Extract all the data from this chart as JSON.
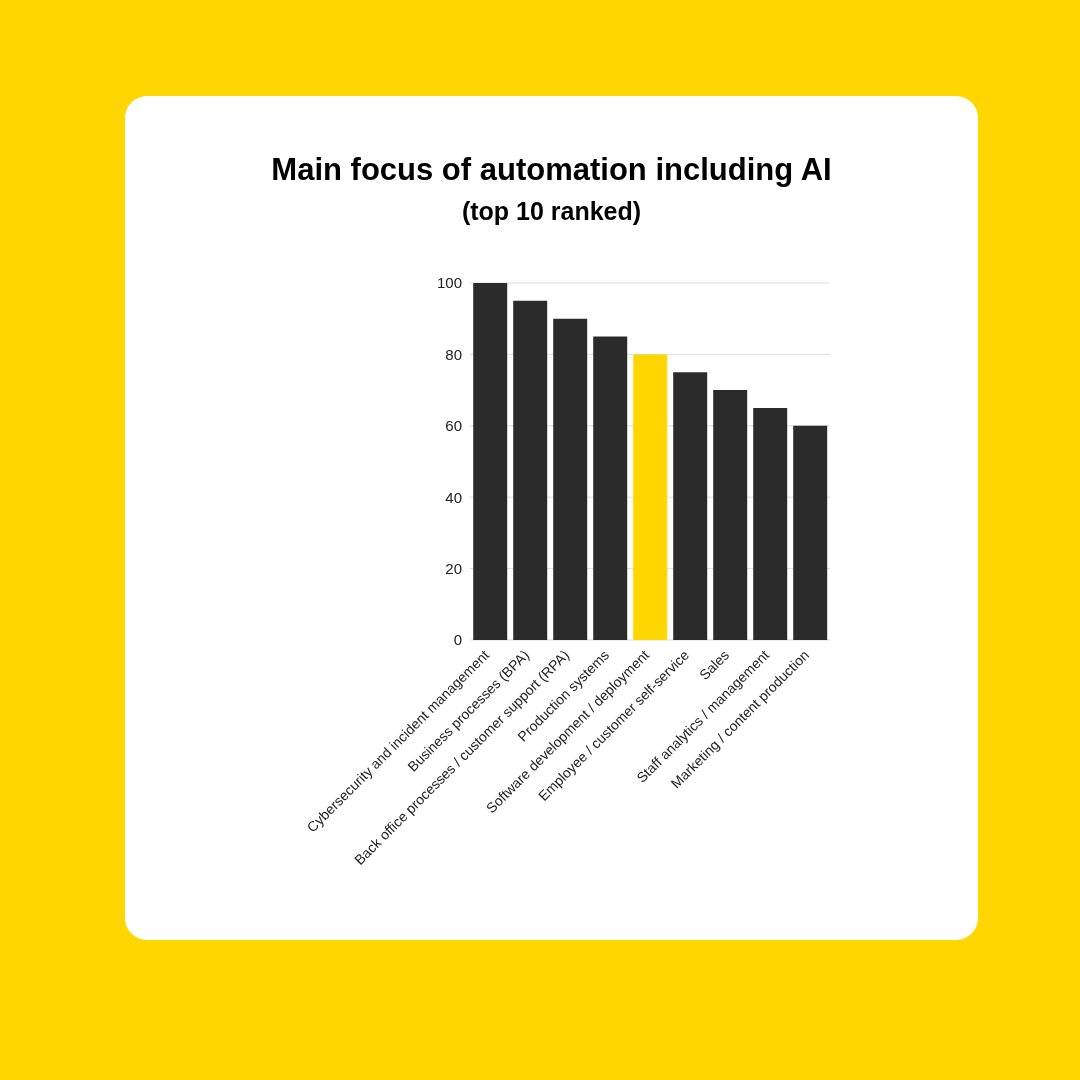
{
  "chart_data": {
    "type": "bar",
    "title": "Main focus of automation including AI",
    "subtitle": "(top 10 ranked)",
    "categories": [
      "Cybersecurity and incident management",
      "Business processes (BPA)",
      "Back office processes / customer support (RPA)",
      "Production systems",
      "Software development / deployment",
      "Employee / customer self-service",
      "Sales",
      "Staff analytics / management",
      "Marketing / content production"
    ],
    "values": [
      100,
      95,
      90,
      85,
      80,
      75,
      70,
      65,
      60
    ],
    "colors": [
      "#2b2b2b",
      "#2b2b2b",
      "#2b2b2b",
      "#2b2b2b",
      "#ffd600",
      "#2b2b2b",
      "#2b2b2b",
      "#2b2b2b",
      "#2b2b2b"
    ],
    "ylim": [
      0,
      100
    ],
    "yticks": [
      0,
      20,
      40,
      60,
      80,
      100
    ],
    "grid": "y"
  }
}
